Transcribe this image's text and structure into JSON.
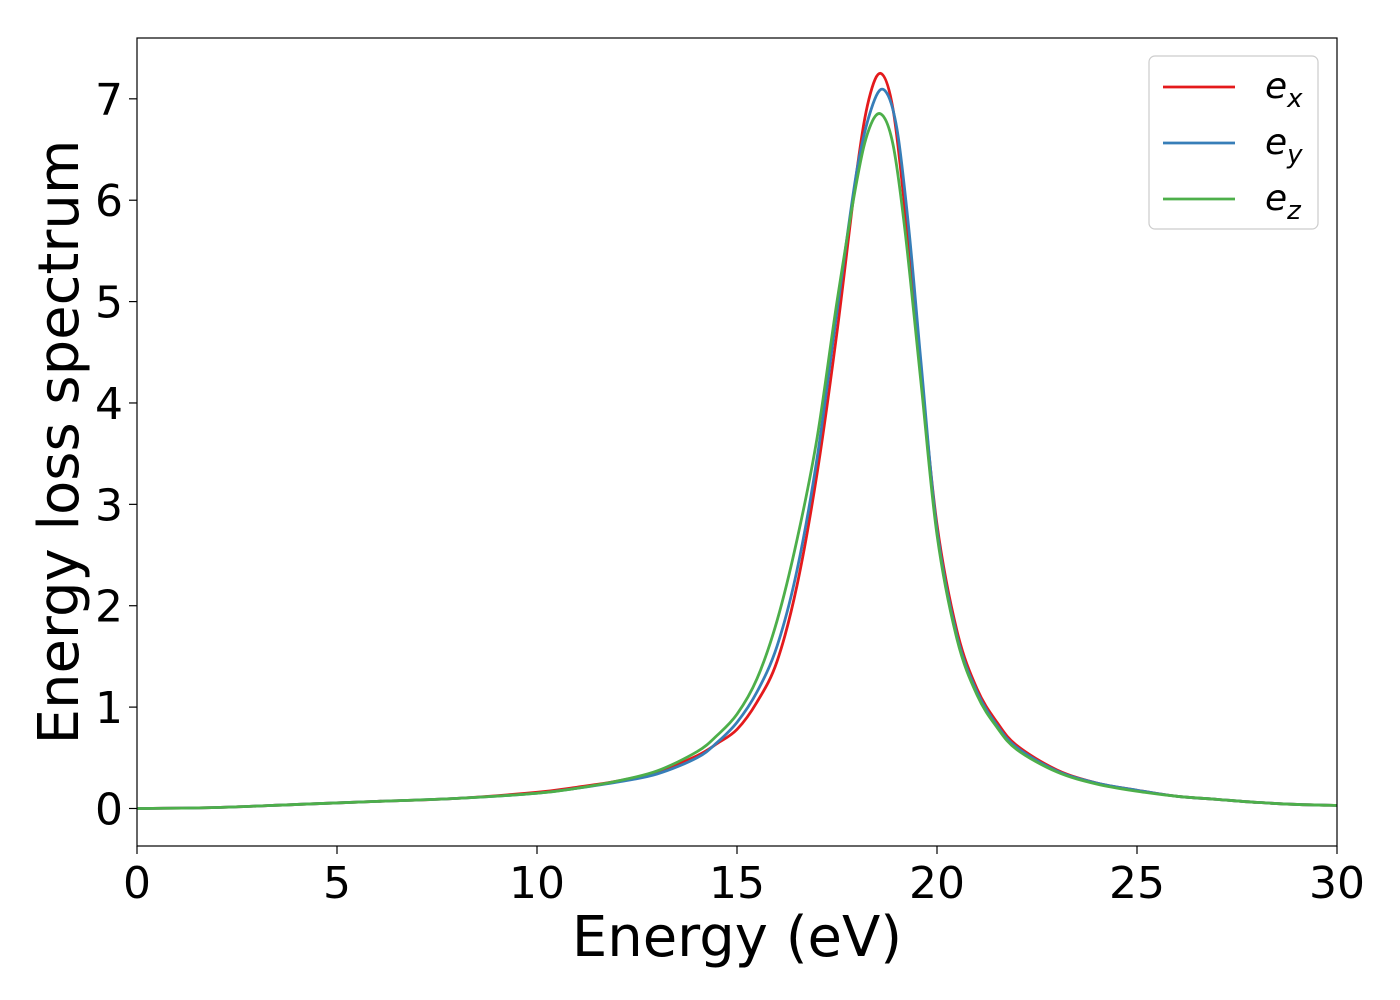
{
  "chart_data": {
    "type": "line",
    "title": "",
    "xlabel": "Energy (eV)",
    "ylabel": "Energy loss spectrum",
    "xlim": [
      0,
      30
    ],
    "ylim": [
      -0.37,
      7.6
    ],
    "xticks": [
      0,
      5,
      10,
      15,
      20,
      25,
      30
    ],
    "yticks": [
      0,
      1,
      2,
      3,
      4,
      5,
      6,
      7
    ],
    "grid": false,
    "legend_position": "top-right",
    "series": [
      {
        "name": "e",
        "subscript": "x",
        "color": "#e41a1c",
        "x": [
          0,
          2,
          4,
          6,
          8,
          10,
          11,
          12,
          13,
          14,
          14.5,
          15,
          15.5,
          16,
          16.5,
          17,
          17.5,
          18,
          18.3,
          18.6,
          18.9,
          19.2,
          19.6,
          20,
          20.5,
          21,
          21.5,
          22,
          23,
          24,
          25,
          26,
          27,
          28,
          29,
          30
        ],
        "y": [
          0,
          0.01,
          0.04,
          0.07,
          0.1,
          0.16,
          0.21,
          0.27,
          0.36,
          0.52,
          0.64,
          0.78,
          1.05,
          1.45,
          2.2,
          3.3,
          4.7,
          6.3,
          7.0,
          7.25,
          6.9,
          5.9,
          4.3,
          2.8,
          1.75,
          1.18,
          0.85,
          0.62,
          0.38,
          0.25,
          0.18,
          0.12,
          0.09,
          0.06,
          0.04,
          0.03
        ]
      },
      {
        "name": "e",
        "subscript": "y",
        "color": "#377eb8",
        "x": [
          0,
          2,
          4,
          6,
          8,
          10,
          11,
          12,
          13,
          14,
          14.5,
          15,
          15.5,
          16,
          16.5,
          17,
          17.5,
          18,
          18.4,
          18.7,
          19,
          19.3,
          19.6,
          20,
          20.5,
          21,
          21.5,
          22,
          23,
          24,
          25,
          26,
          27,
          28,
          29,
          30
        ],
        "y": [
          0,
          0.01,
          0.04,
          0.07,
          0.1,
          0.15,
          0.2,
          0.26,
          0.34,
          0.5,
          0.65,
          0.85,
          1.15,
          1.6,
          2.35,
          3.45,
          4.9,
          6.3,
          6.95,
          7.08,
          6.7,
          5.7,
          4.4,
          2.75,
          1.7,
          1.15,
          0.82,
          0.6,
          0.37,
          0.25,
          0.18,
          0.12,
          0.09,
          0.06,
          0.04,
          0.03
        ]
      },
      {
        "name": "e",
        "subscript": "z",
        "color": "#4daf4a",
        "x": [
          0,
          2,
          4,
          6,
          8,
          10,
          11,
          12,
          13,
          14,
          14.5,
          15,
          15.5,
          16,
          16.5,
          17,
          17.5,
          18,
          18.3,
          18.6,
          18.9,
          19.2,
          19.6,
          20,
          20.5,
          21,
          21.5,
          22,
          23,
          24,
          25,
          26,
          27,
          28,
          29,
          30
        ],
        "y": [
          0,
          0.01,
          0.04,
          0.07,
          0.1,
          0.15,
          0.2,
          0.27,
          0.37,
          0.56,
          0.72,
          0.93,
          1.28,
          1.85,
          2.65,
          3.65,
          5.0,
          6.2,
          6.7,
          6.85,
          6.55,
          5.7,
          4.2,
          2.7,
          1.67,
          1.12,
          0.8,
          0.58,
          0.36,
          0.24,
          0.17,
          0.12,
          0.09,
          0.06,
          0.04,
          0.03
        ]
      }
    ]
  }
}
